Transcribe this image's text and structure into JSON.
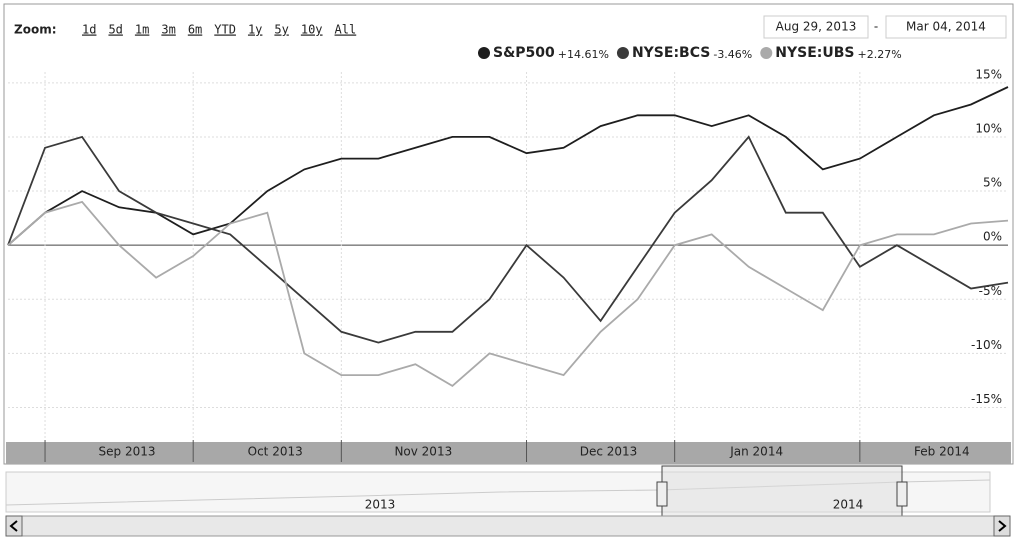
{
  "ui": {
    "zoom_label": "Zoom:",
    "zoom_buttons": [
      "1d",
      "5d",
      "1m",
      "3m",
      "6m",
      "YTD",
      "1y",
      "5y",
      "10y",
      "All"
    ],
    "range_start": "Aug 29, 2013",
    "range_sep": "-",
    "range_end": "Mar 04, 2014",
    "navigator_labels": [
      "2013",
      "2014"
    ]
  },
  "chart_data": {
    "type": "line",
    "categories": [
      null,
      "Sep 2013",
      null,
      null,
      null,
      "Oct 2013",
      null,
      null,
      null,
      "Nov 2013",
      null,
      null,
      null,
      null,
      "Dec 2013",
      null,
      null,
      null,
      "Jan 2014",
      null,
      null,
      null,
      null,
      "Feb 2014",
      null,
      null,
      null,
      null
    ],
    "series": [
      {
        "name": "S&P500",
        "change_label": "+14.61%",
        "color": "#1e1e1e",
        "values": [
          0,
          3,
          5,
          3.5,
          3,
          1,
          2,
          5,
          7,
          8,
          8,
          9,
          10,
          10,
          8.5,
          9,
          11,
          12,
          12,
          11,
          12,
          10,
          7,
          8,
          10,
          12,
          13,
          14.61
        ]
      },
      {
        "name": "NYSE:BCS",
        "change_label": "-3.46%",
        "color": "#3a3a3a",
        "values": [
          0,
          9,
          10,
          5,
          3,
          2,
          1,
          -2,
          -5,
          -8,
          -9,
          -8,
          -8,
          -5,
          0,
          -3,
          -7,
          -2,
          3,
          6,
          10,
          3,
          3,
          -2,
          0,
          -2,
          -4,
          -3.46
        ]
      },
      {
        "name": "NYSE:UBS",
        "change_label": "+2.27%",
        "color": "#aaaaaa",
        "values": [
          0,
          3,
          4,
          0,
          -3,
          -1,
          2,
          3,
          -10,
          -12,
          -12,
          -11,
          -13,
          -10,
          -11,
          -12,
          -8,
          -5,
          0,
          1,
          -2,
          -4,
          -6,
          0,
          1,
          1,
          2,
          2.27
        ]
      }
    ],
    "ylim": [
      -18,
      16
    ],
    "yticks": [
      {
        "value": -15,
        "label": "-15%"
      },
      {
        "value": -10,
        "label": "-10%"
      },
      {
        "value": -5,
        "label": "-5%"
      },
      {
        "value": 0,
        "label": "0%"
      },
      {
        "value": 5,
        "label": "5%"
      },
      {
        "value": 10,
        "label": "10%"
      },
      {
        "value": 15,
        "label": "15%"
      }
    ],
    "grid": true
  }
}
